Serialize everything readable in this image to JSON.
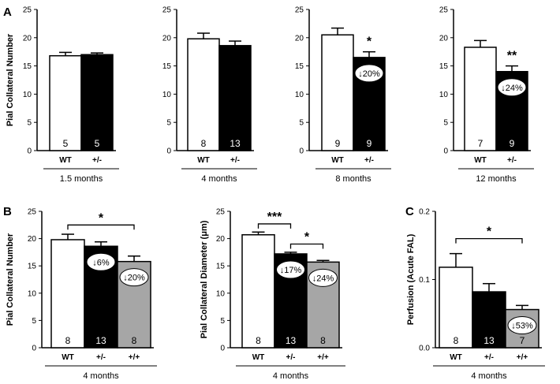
{
  "colors": {
    "wt": "#ffffff",
    "het": "#000000",
    "hom": "#a6a6a6",
    "axis": "#000000"
  },
  "chart_data": [
    {
      "panel": "A",
      "type": "bar",
      "ylabel": "Pial Collateral Number",
      "ylim": [
        0,
        25
      ],
      "yticks": [
        "0",
        "5",
        "10",
        "15",
        "20",
        "25"
      ],
      "group_label": "1.5 months",
      "bars": [
        {
          "category": "WT",
          "value": 16.8,
          "error": 0.6,
          "color": "wt",
          "n": "5"
        },
        {
          "category": "+/-",
          "value": 17.0,
          "error": 0.3,
          "color": "het",
          "n": "5"
        }
      ]
    },
    {
      "panel": "",
      "type": "bar",
      "ylabel": "",
      "ylim": [
        0,
        25
      ],
      "yticks": [
        "0",
        "5",
        "10",
        "15",
        "20",
        "25"
      ],
      "group_label": "4 months",
      "bars": [
        {
          "category": "WT",
          "value": 19.8,
          "error": 1.0,
          "color": "wt",
          "n": "8"
        },
        {
          "category": "+/-",
          "value": 18.6,
          "error": 0.8,
          "color": "het",
          "n": "13"
        }
      ]
    },
    {
      "panel": "",
      "type": "bar",
      "ylabel": "",
      "ylim": [
        0,
        25
      ],
      "yticks": [
        "0",
        "5",
        "10",
        "15",
        "20",
        "25"
      ],
      "group_label": "8 months",
      "bars": [
        {
          "category": "WT",
          "value": 20.5,
          "error": 1.2,
          "color": "wt",
          "n": "9"
        },
        {
          "category": "+/-",
          "value": 16.5,
          "error": 1.0,
          "color": "het",
          "n": "9",
          "pct": "↓20%"
        }
      ],
      "annotations": [
        {
          "text": "*",
          "bar": 1
        }
      ]
    },
    {
      "panel": "",
      "type": "bar",
      "ylabel": "",
      "ylim": [
        0,
        25
      ],
      "yticks": [
        "0",
        "5",
        "10",
        "15",
        "20",
        "25"
      ],
      "group_label": "12 months",
      "bars": [
        {
          "category": "WT",
          "value": 18.3,
          "error": 1.2,
          "color": "wt",
          "n": "7"
        },
        {
          "category": "+/-",
          "value": 14.0,
          "error": 1.0,
          "color": "het",
          "n": "9",
          "pct": "↓24%"
        }
      ],
      "annotations": [
        {
          "text": "**",
          "bar": 1
        }
      ]
    },
    {
      "panel": "B",
      "type": "bar",
      "ylabel": "Pial Collateral Number",
      "ylim": [
        0,
        25
      ],
      "yticks": [
        "0",
        "5",
        "10",
        "15",
        "20",
        "25"
      ],
      "group_label": "4 months",
      "bars": [
        {
          "category": "WT",
          "value": 19.8,
          "error": 1.0,
          "color": "wt",
          "n": "8"
        },
        {
          "category": "+/-",
          "value": 18.6,
          "error": 0.8,
          "color": "het",
          "n": "13",
          "pct": "↓6%"
        },
        {
          "category": "+/+",
          "value": 15.8,
          "error": 1.0,
          "color": "hom",
          "n": "8",
          "pct": "↓20%"
        }
      ],
      "brackets": [
        {
          "from": 0,
          "to": 2,
          "y": 22.5,
          "text": "*"
        }
      ]
    },
    {
      "panel": "",
      "type": "bar",
      "ylabel": "Pial Collateral Diameter  (μm)",
      "ylim": [
        0,
        25
      ],
      "yticks": [
        "0",
        "5",
        "10",
        "15",
        "20",
        "25"
      ],
      "group_label": "4 months",
      "bars": [
        {
          "category": "WT",
          "value": 20.7,
          "error": 0.5,
          "color": "wt",
          "n": "8"
        },
        {
          "category": "+/-",
          "value": 17.2,
          "error": 0.3,
          "color": "het",
          "n": "13",
          "pct": "↓17%"
        },
        {
          "category": "+/+",
          "value": 15.7,
          "error": 0.3,
          "color": "hom",
          "n": "8",
          "pct": "↓24%"
        }
      ],
      "brackets": [
        {
          "from": 0,
          "to": 1,
          "y": 22.7,
          "text": "***"
        },
        {
          "from": 1,
          "to": 2,
          "y": 19.0,
          "text": "*"
        }
      ]
    },
    {
      "panel": "C",
      "type": "bar",
      "ylabel": "Perfusion (Acute  FAL)",
      "ylim": [
        0,
        0.2
      ],
      "yticks": [
        "0.0",
        "0.1",
        "0.2"
      ],
      "group_label": "4 months",
      "bars": [
        {
          "category": "WT",
          "value": 0.118,
          "error": 0.02,
          "color": "wt",
          "n": "8"
        },
        {
          "category": "+/-",
          "value": 0.082,
          "error": 0.012,
          "color": "het",
          "n": "13"
        },
        {
          "category": "+/+",
          "value": 0.056,
          "error": 0.006,
          "color": "hom",
          "n": "7",
          "pct": "↓53%"
        }
      ],
      "brackets": [
        {
          "from": 0,
          "to": 2,
          "y": 0.16,
          "text": "*"
        }
      ]
    }
  ]
}
